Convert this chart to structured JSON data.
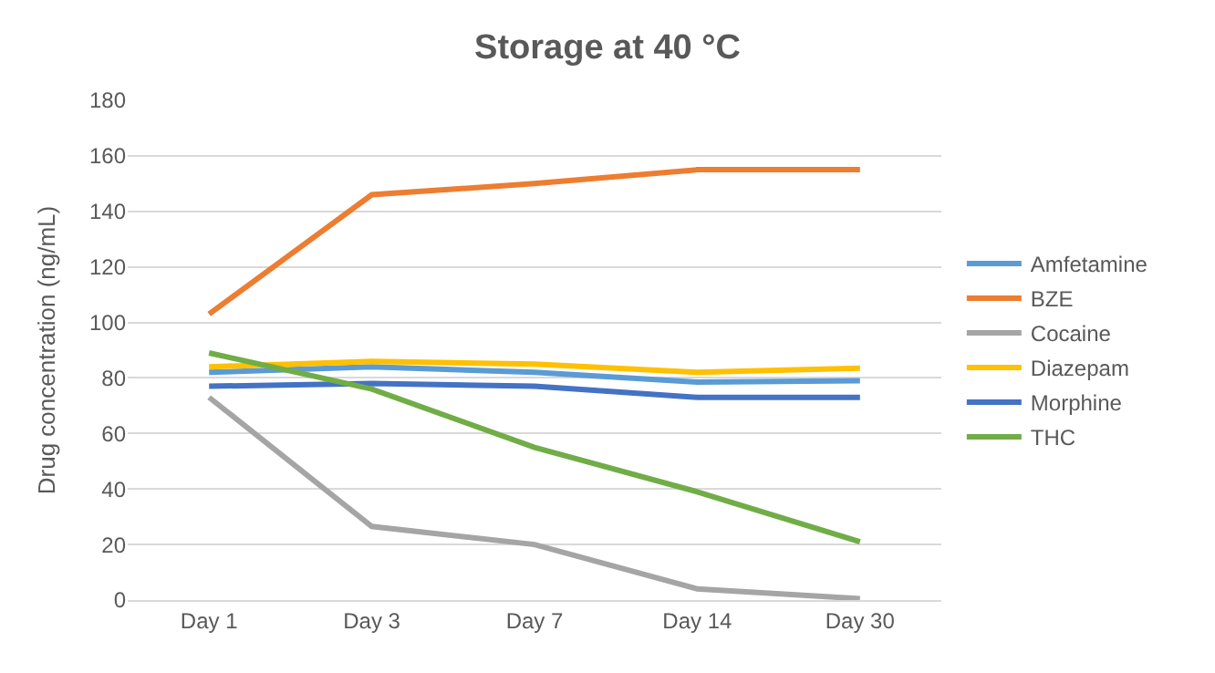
{
  "chart_data": {
    "type": "line",
    "title": "Storage at 40 °C",
    "ylabel": "Drug concentration (ng/mL)",
    "categories": [
      "Day 1",
      "Day 3",
      "Day 7",
      "Day 14",
      "Day 30"
    ],
    "series": [
      {
        "name": "Amfetamine",
        "color": "#5b9bd5",
        "values": [
          82,
          84,
          82,
          78.5,
          79
        ]
      },
      {
        "name": "BZE",
        "color": "#ed7d31",
        "values": [
          103,
          146,
          150,
          155,
          155
        ]
      },
      {
        "name": "Cocaine",
        "color": "#a5a5a5",
        "values": [
          73,
          26.5,
          20,
          4,
          0.5
        ]
      },
      {
        "name": "Diazepam",
        "color": "#ffc000",
        "values": [
          84,
          86,
          85,
          82,
          83.5
        ]
      },
      {
        "name": "Morphine",
        "color": "#4472c4",
        "values": [
          77,
          78,
          77,
          73,
          73
        ]
      },
      {
        "name": "THC",
        "color": "#70ad47",
        "values": [
          89,
          76,
          55,
          39,
          21
        ]
      }
    ],
    "ylim": [
      0,
      180
    ],
    "yticks": [
      0,
      20,
      40,
      60,
      80,
      100,
      120,
      140,
      160,
      180
    ],
    "grid": "y",
    "legend": "right",
    "marker": "none",
    "line_style": "solid"
  }
}
